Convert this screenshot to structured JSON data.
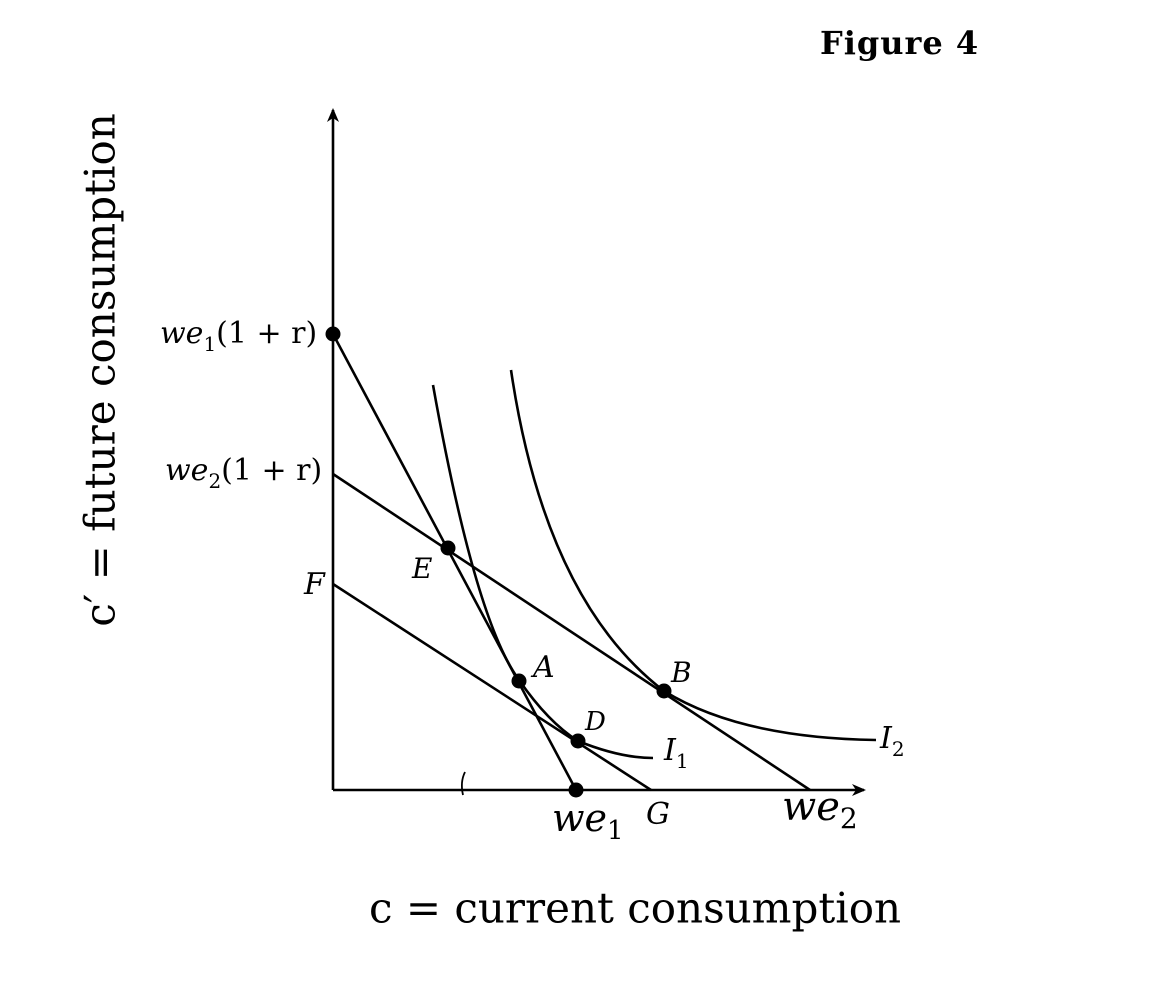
{
  "figure": {
    "title": "Figure 4",
    "y_axis_label": "c′ = future consumption",
    "x_axis_label": "c = current consumption"
  },
  "y_axis_labels": {
    "we1_1r": {
      "base": "we",
      "sub": "1",
      "tail": "(1 + r)"
    },
    "we2_1r": {
      "base": "we",
      "sub": "2",
      "tail": "(1 + r)"
    },
    "F": "F"
  },
  "x_axis_labels": {
    "we1": {
      "base": "we",
      "sub": "1"
    },
    "G": "G",
    "we2": {
      "base": "we",
      "sub": "2"
    }
  },
  "points": {
    "A": "A",
    "B": "B",
    "D": "D",
    "E": "E"
  },
  "curves": {
    "I1": {
      "base": "I",
      "sub": "1"
    },
    "I2": {
      "base": "I",
      "sub": "2"
    }
  },
  "colors": {
    "ink": "#000000",
    "background": "#ffffff"
  }
}
